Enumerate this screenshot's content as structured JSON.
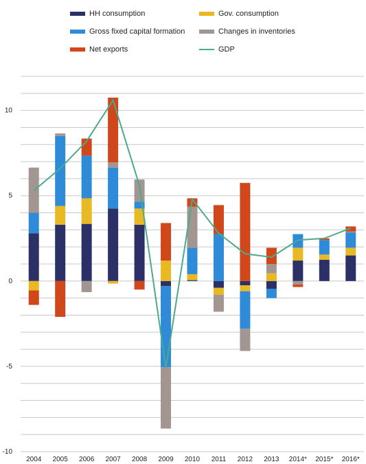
{
  "chart_data": {
    "type": "bar",
    "stacked": true,
    "title": "",
    "xlabel": "",
    "ylabel": "",
    "categories": [
      "2004",
      "2005",
      "2006",
      "2007",
      "2008",
      "2009",
      "2010",
      "2011",
      "2012",
      "2013",
      "2014*",
      "2015*",
      "2016*"
    ],
    "ylim": [
      -10,
      12
    ],
    "yticks": [
      -10,
      -5,
      0,
      5,
      10
    ],
    "grid": "horizontal",
    "legend_position": "top",
    "series": [
      {
        "name": "HH consumption",
        "color": "#2b3066",
        "values": [
          2.8,
          3.3,
          3.35,
          4.25,
          3.3,
          -0.3,
          0.05,
          -0.4,
          -0.25,
          -0.45,
          1.2,
          1.25,
          1.5
        ]
      },
      {
        "name": "Gov. consumption",
        "color": "#e8b923",
        "values": [
          -0.55,
          1.1,
          1.5,
          -0.15,
          0.95,
          1.2,
          0.35,
          -0.4,
          -0.35,
          0.45,
          0.75,
          0.3,
          0.45
        ]
      },
      {
        "name": "Gross fixed capital formation",
        "color": "#2f8bd8",
        "values": [
          1.2,
          4.1,
          2.5,
          2.4,
          0.4,
          -4.75,
          1.55,
          2.75,
          -2.2,
          -0.55,
          0.8,
          0.85,
          0.9
        ]
      },
      {
        "name": "Changes in inventories",
        "color": "#a39690",
        "values": [
          2.65,
          0.15,
          -0.65,
          0.3,
          1.3,
          -3.6,
          2.4,
          -1.0,
          -1.3,
          0.55,
          -0.2,
          0.0,
          0.05
        ]
      },
      {
        "name": "Net exports",
        "color": "#d1471c",
        "values": [
          -0.85,
          -2.1,
          1.0,
          3.8,
          -0.5,
          2.2,
          0.5,
          1.7,
          5.75,
          0.95,
          -0.15,
          0.1,
          0.3
        ]
      }
    ],
    "line_series": {
      "name": "GDP",
      "color": "#4aaa90",
      "values": [
        5.3,
        6.6,
        8.2,
        10.6,
        5.6,
        -5.1,
        4.8,
        2.8,
        1.6,
        1.4,
        2.4,
        2.5,
        3.1
      ]
    }
  }
}
